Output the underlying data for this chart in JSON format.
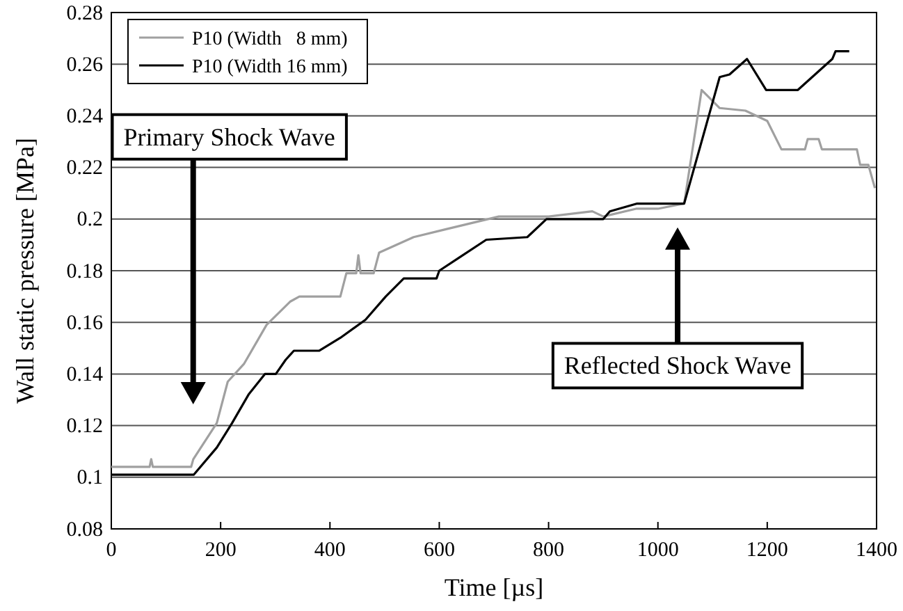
{
  "chart_data": {
    "type": "line",
    "xlabel": "Time [µs]",
    "ylabel": "Wall static pressure [MPa]",
    "xlim": [
      0,
      1400
    ],
    "xticks": [
      0,
      200,
      400,
      600,
      800,
      1000,
      1200,
      1400
    ],
    "ylim": [
      0.08,
      0.28
    ],
    "yticks": [
      0.08,
      0.1,
      0.12,
      0.14,
      0.16,
      0.18,
      0.2,
      0.22,
      0.24,
      0.26,
      0.28
    ],
    "grid": "y",
    "legend": "top left",
    "line_style": "solid",
    "marker": "none",
    "series": [
      {
        "name": "P10 (Width   8 mm)",
        "color": "#a0a0a0",
        "x": [
          0,
          70,
          73,
          76,
          146,
          150,
          193,
          213,
          243,
          284,
          327,
          344,
          419,
          430,
          448,
          452,
          456,
          480,
          490,
          553,
          611,
          709,
          800,
          880,
          900,
          960,
          1000,
          1048,
          1080,
          1113,
          1160,
          1200,
          1226,
          1269,
          1274,
          1294,
          1300,
          1364,
          1370,
          1385,
          1397
        ],
        "values": [
          0.104,
          0.104,
          0.107,
          0.104,
          0.104,
          0.107,
          0.121,
          0.137,
          0.144,
          0.159,
          0.168,
          0.17,
          0.17,
          0.179,
          0.179,
          0.186,
          0.179,
          0.179,
          0.187,
          0.193,
          0.196,
          0.201,
          0.201,
          0.203,
          0.201,
          0.204,
          0.204,
          0.206,
          0.25,
          0.243,
          0.242,
          0.238,
          0.227,
          0.227,
          0.231,
          0.231,
          0.227,
          0.227,
          0.221,
          0.221,
          0.212
        ]
      },
      {
        "name": "P10 (Width 16 mm)",
        "color": "#000000",
        "x": [
          0,
          151,
          193,
          221,
          251,
          281,
          301,
          319,
          334,
          380,
          419,
          465,
          502,
          535,
          595,
          600,
          636,
          686,
          761,
          796,
          900,
          912,
          962,
          1048,
          1113,
          1131,
          1163,
          1198,
          1256,
          1319,
          1325,
          1350
        ],
        "values": [
          0.101,
          0.101,
          0.1115,
          0.121,
          0.132,
          0.14,
          0.14,
          0.1455,
          0.149,
          0.149,
          0.154,
          0.161,
          0.17,
          0.177,
          0.177,
          0.18,
          0.185,
          0.192,
          0.193,
          0.2,
          0.2,
          0.203,
          0.206,
          0.206,
          0.255,
          0.256,
          0.262,
          0.25,
          0.25,
          0.262,
          0.265,
          0.265
        ]
      }
    ],
    "annotations": [
      "Primary Shock Wave",
      "Reflected Shock Wave"
    ]
  }
}
